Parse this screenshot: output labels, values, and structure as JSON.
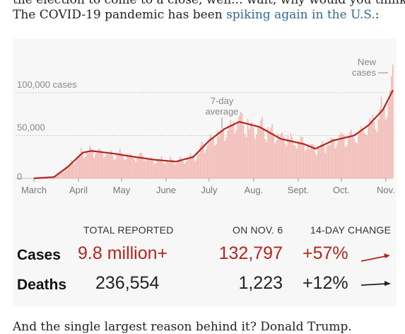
{
  "article": {
    "cut_line_top": "the election to come to a close, well... wait, why would you think that.",
    "intro_text": "The COVID-19 pandemic has been ",
    "intro_link": "spiking again in the U.S.",
    "intro_after": ":",
    "cut_line_bottom": "And the single largest reason behind it? Donald Trump."
  },
  "chart_data": {
    "type": "bar",
    "title": "",
    "xlabel": "",
    "ylabel": "",
    "ylim": [
      0,
      133000
    ],
    "y_ticks": [
      {
        "value": 0,
        "label": "0"
      },
      {
        "value": 50000,
        "label": "50,000"
      },
      {
        "value": 100000,
        "label": "100,000 cases"
      }
    ],
    "x_ticks": [
      "March",
      "April",
      "May",
      "June",
      "July",
      "Aug.",
      "Sept.",
      "Oct.",
      "Nov."
    ],
    "annotations": {
      "average": "7-day\naverage",
      "new_cases": "New\ncases"
    },
    "daily_start": "2020-03-01",
    "daily_end": "2020-11-06",
    "average_keypoints": [
      {
        "date": "2020-03-01",
        "value": 0
      },
      {
        "date": "2020-03-15",
        "value": 1500
      },
      {
        "date": "2020-03-25",
        "value": 14000
      },
      {
        "date": "2020-04-04",
        "value": 30000
      },
      {
        "date": "2020-04-10",
        "value": 32000
      },
      {
        "date": "2020-04-25",
        "value": 29000
      },
      {
        "date": "2020-05-10",
        "value": 25000
      },
      {
        "date": "2020-05-25",
        "value": 21500
      },
      {
        "date": "2020-06-08",
        "value": 19500
      },
      {
        "date": "2020-06-20",
        "value": 25000
      },
      {
        "date": "2020-07-01",
        "value": 44000
      },
      {
        "date": "2020-07-12",
        "value": 58000
      },
      {
        "date": "2020-07-22",
        "value": 66000
      },
      {
        "date": "2020-08-05",
        "value": 60000
      },
      {
        "date": "2020-08-20",
        "value": 46000
      },
      {
        "date": "2020-09-05",
        "value": 40000
      },
      {
        "date": "2020-09-13",
        "value": 34500
      },
      {
        "date": "2020-09-25",
        "value": 44000
      },
      {
        "date": "2020-10-10",
        "value": 50000
      },
      {
        "date": "2020-10-20",
        "value": 62000
      },
      {
        "date": "2020-10-30",
        "value": 80000
      },
      {
        "date": "2020-11-06",
        "value": 103000
      }
    ],
    "latest_daily": 132797,
    "colors": {
      "bars": "#f2b7b2",
      "average": "#b3261e",
      "grid": "#c8c8c8"
    }
  },
  "stats": {
    "headers": {
      "total": "TOTAL REPORTED",
      "on_date": "ON NOV. 6",
      "change": "14-DAY CHANGE"
    },
    "rows": [
      {
        "label": "Cases",
        "total": "9.8 million+",
        "on_date": "132,797",
        "change": "+57%",
        "color": "#b3261e"
      },
      {
        "label": "Deaths",
        "total": "236,554",
        "on_date": "1,223",
        "change": "+12%",
        "color": "#222222"
      }
    ]
  }
}
